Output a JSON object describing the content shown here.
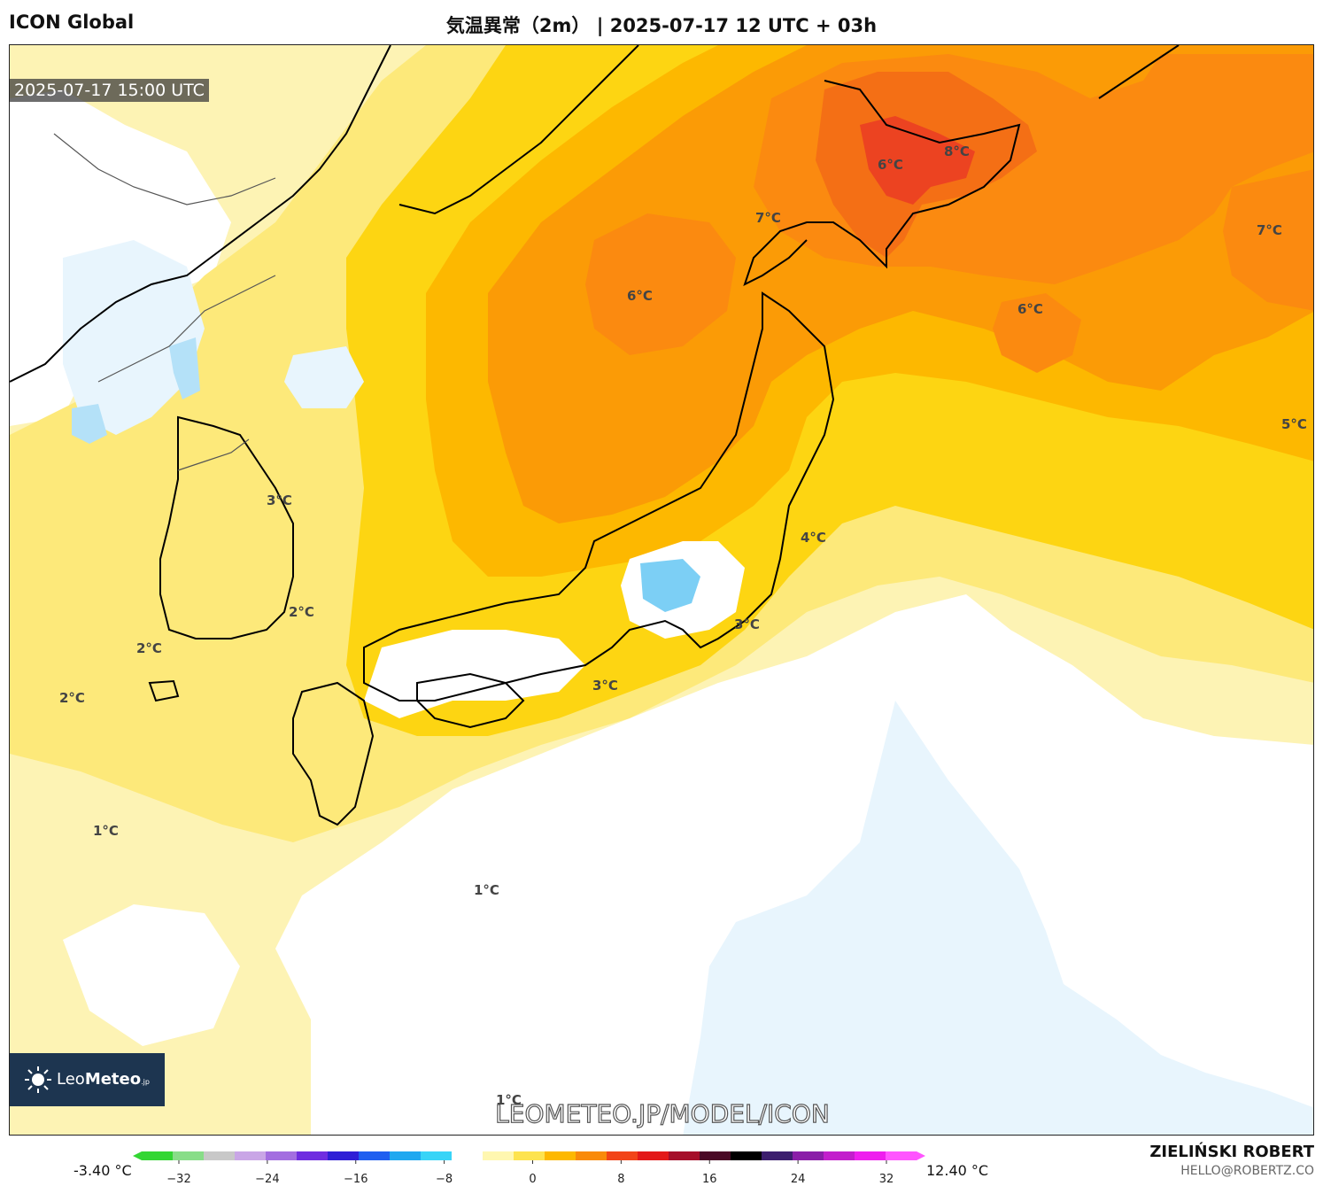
{
  "header": {
    "model_name": "ICON Global",
    "title": "気温異常（2m） | 2025-07-17 12 UTC + 03h"
  },
  "map": {
    "valid_time": "2025-07-17 15:00 UTC",
    "watermark": "LEOMETEO.JP/MODEL/ICON",
    "logo": {
      "brand": "Leo",
      "brand_bold": "Meteo",
      "suffix": ".jp"
    },
    "labels": [
      "6°C",
      "8°C",
      "7°C",
      "6°C",
      "7°C",
      "6°C",
      "5°C",
      "3°C",
      "4°C",
      "2°C",
      "3°C",
      "2°C",
      "2°C",
      "3°C",
      "1°C",
      "1°C",
      "1°C"
    ],
    "colors": {
      "neutral": "#ffffff",
      "light_yellow": "#fdf3b4",
      "yellow": "#fde97a",
      "gold": "#fdd512",
      "orange_light": "#fdb800",
      "orange": "#fb9b06",
      "dark_orange": "#fb8a10",
      "red_orange": "#f46f15",
      "red": "#ec4321",
      "light_blue": "#e8f5fd",
      "blue": "#b4e1f8",
      "cyan": "#7ccff5",
      "coast": "#000000",
      "border": "#555555"
    }
  },
  "colorbar": {
    "min_label": "-3.40 °C",
    "max_label": "12.40 °C",
    "ticks": [
      "−32",
      "−24",
      "−16",
      "−8",
      "0",
      "8",
      "16",
      "24",
      "32"
    ],
    "stops": [
      "#33d633",
      "#88dd88",
      "#c8c8c8",
      "#c9a6e6",
      "#a36ee0",
      "#6f2de0",
      "#2f1fd6",
      "#1f5ff0",
      "#1fa8f0",
      "#38d4f7",
      "#ffffff",
      "#fff7b0",
      "#fde34f",
      "#fdb800",
      "#f98a0a",
      "#f24418",
      "#e31919",
      "#a50f2a",
      "#4a0a26",
      "#000000",
      "#3c1e6e",
      "#8a1ea8",
      "#c21ecc",
      "#ee1eee",
      "#ff55ff"
    ]
  },
  "footer": {
    "author": "ZIELIŃSKI ROBERT",
    "contact": "HELLO@ROBERTZ.CO"
  }
}
